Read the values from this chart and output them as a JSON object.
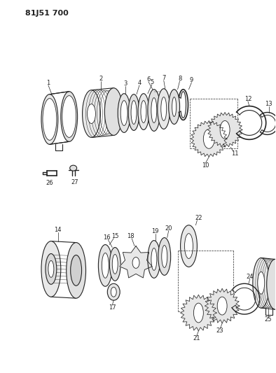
{
  "title": "81J51 700",
  "bg_color": "#ffffff",
  "line_color": "#222222",
  "title_fontsize": 8,
  "fig_width": 3.94,
  "fig_height": 5.33,
  "dpi": 100
}
